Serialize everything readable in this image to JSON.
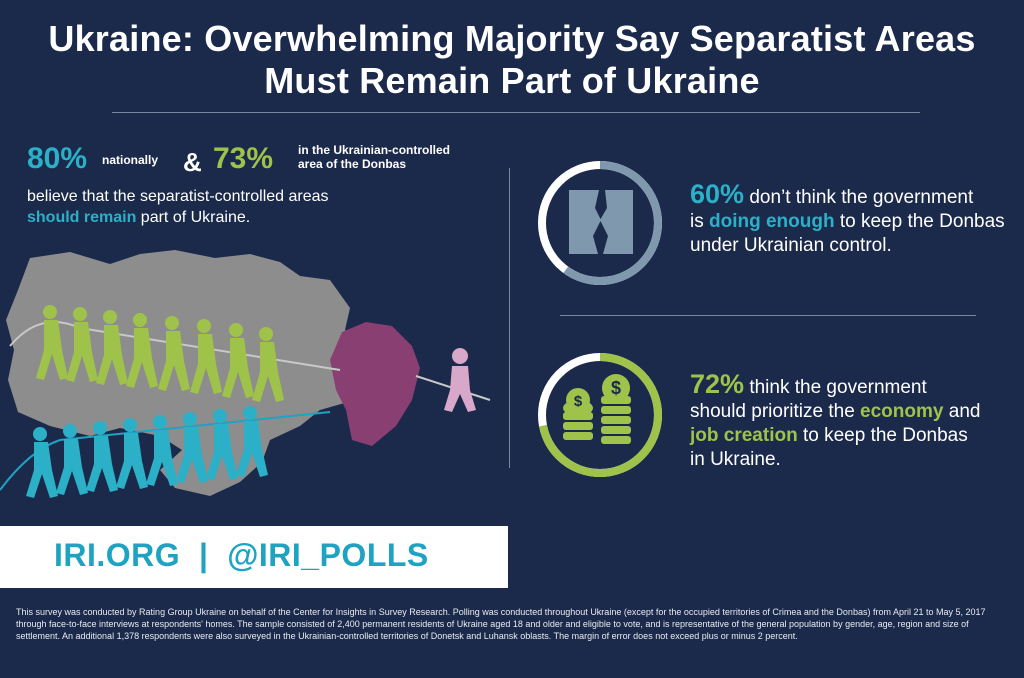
{
  "title_line1": "Ukraine: Overwhelming Majority Say Separatist Areas",
  "title_line2": "Must Remain Part of Ukraine",
  "left": {
    "pct1": "80%",
    "pct1_label": "nationally",
    "amp": "&",
    "pct2": "73%",
    "pct2_label_line1": "in the Ukrainian-controlled",
    "pct2_label_line2": "area of the Donbas",
    "believe_pre": "believe that the separatist-controlled areas",
    "believe_hl": "should remain",
    "believe_post": " part of Ukraine."
  },
  "stat60": {
    "pct": "60%",
    "text_a": " don’t think the government",
    "text_b_pre": "is ",
    "hl": "doing enough",
    "text_b_post": " to keep the Donbas",
    "text_c": "under Ukrainian control.",
    "ring_fraction": 0.6,
    "ring_color": "#7f98ad"
  },
  "stat72": {
    "pct": "72%",
    "text_a": " think the government",
    "text_b_pre": "should prioritize the ",
    "hl1": "economy",
    "text_b_post": " and",
    "hl2": "job creation",
    "text_c_post": " to keep the Donbas",
    "text_d": "in Ukraine.",
    "ring_fraction": 0.72,
    "ring_color": "#9fc24a"
  },
  "footer": {
    "link": "IRI.ORG  |  @IRI_POLLS"
  },
  "note": "This survey was conducted by Rating Group Ukraine on behalf of the Center for Insights in Survey Research. Polling was conducted throughout Ukraine (except for the occupied territories of Crimea and the Donbas) from April 21 to May 5, 2017 through face-to-face interviews at respondents' homes. The sample consisted of 2,400 permanent residents of Ukraine aged 18 and older and eligible to vote, and is representative of the general population by gender, age, region and size of settlement. An additional 1,378 respondents were also surveyed in the Ukrainian-controlled territories of Donetsk and Luhansk oblasts. The margin of error does not exceed plus or minus 2 percent.",
  "colors": {
    "background": "#1b2a4a",
    "blue": "#2bb0c8",
    "green": "#9fc24a",
    "map_gray": "#8d8d8d",
    "donbas": "#8a3f73"
  }
}
